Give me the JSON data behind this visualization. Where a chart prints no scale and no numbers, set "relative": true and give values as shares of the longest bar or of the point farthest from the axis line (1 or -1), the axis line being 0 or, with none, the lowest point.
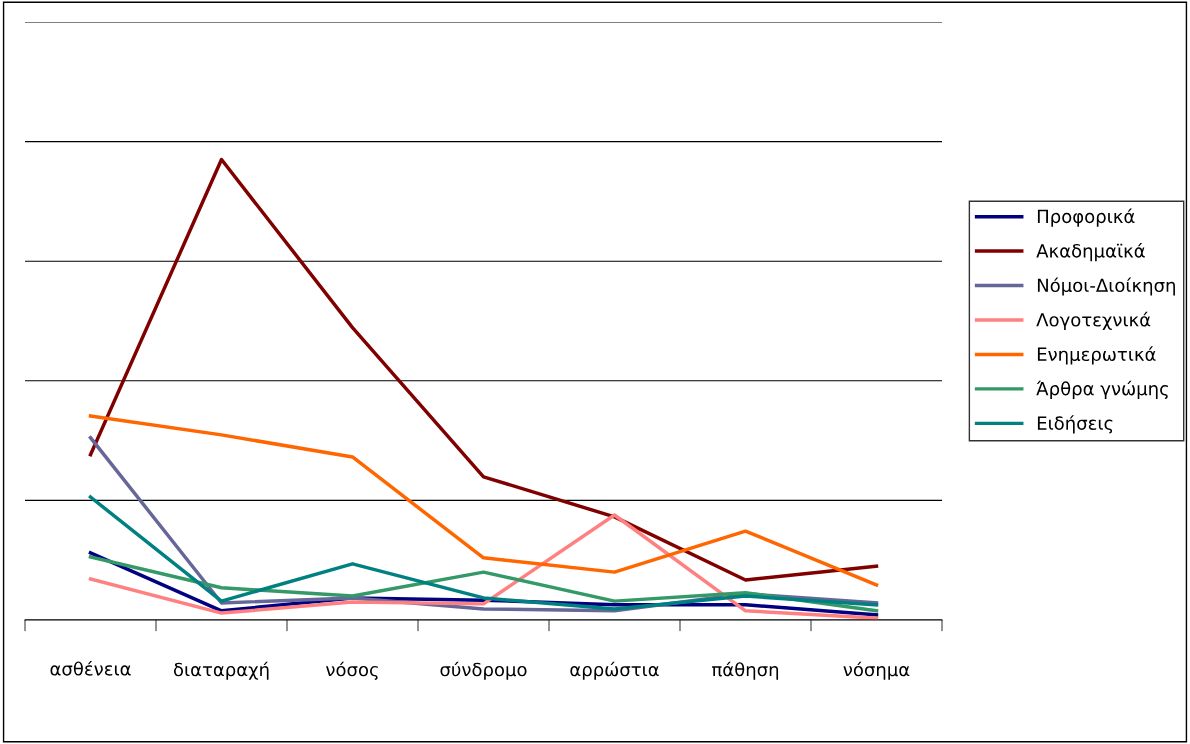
{
  "chart_data": {
    "type": "line",
    "relative": true,
    "grid": "y",
    "legend": "right",
    "marker": "none",
    "line_style": "solid",
    "categories": [
      "ασθένεια",
      "διαταραχή",
      "νόσος",
      "σύνδρομο",
      "αρρώστια",
      "πάθηση",
      "νόσημα"
    ],
    "series": [
      {
        "name": "Προφορικά",
        "color": "#000080",
        "values": [
          0.146,
          0.02,
          0.048,
          0.043,
          0.033,
          0.033,
          0.011
        ]
      },
      {
        "name": "Ακαδημαϊκά",
        "color": "#800000",
        "values": [
          0.359,
          1,
          0.635,
          0.311,
          0.224,
          0.087,
          0.117
        ]
      },
      {
        "name": "Νόμοι-Διοίκηση",
        "color": "#666699",
        "values": [
          0.396,
          0.037,
          0.048,
          0.024,
          0.02,
          0.057,
          0.037
        ]
      },
      {
        "name": "Λογοτεχνικά",
        "color": "#ff8080",
        "values": [
          0.089,
          0.015,
          0.039,
          0.035,
          0.228,
          0.02,
          0.004
        ]
      },
      {
        "name": "Ενημερωτικά",
        "color": "#ff6600",
        "values": [
          0.443,
          0.402,
          0.354,
          0.135,
          0.104,
          0.193,
          0.076
        ]
      },
      {
        "name": "Άρθρα γνώμης",
        "color": "#339966",
        "values": [
          0.137,
          0.07,
          0.052,
          0.104,
          0.041,
          0.059,
          0.02
        ]
      },
      {
        "name": "Ειδήσεις",
        "color": "#008080",
        "values": [
          0.267,
          0.041,
          0.122,
          0.048,
          0.024,
          0.052,
          0.033
        ]
      }
    ]
  }
}
